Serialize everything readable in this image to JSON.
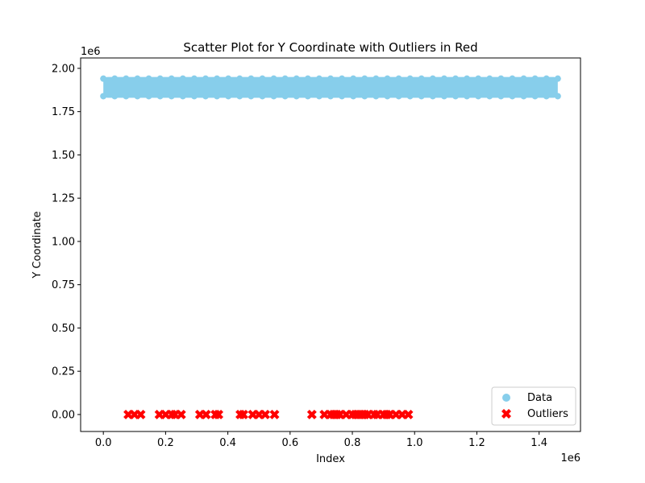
{
  "chart_data": {
    "type": "scatter",
    "title": "Scatter Plot for Y Coordinate with Outliers in Red",
    "xlabel": "Index",
    "ylabel": "Y Coordinate",
    "x_offset_text": "1e6",
    "y_offset_text": "1e6",
    "xlim": [
      -0.073,
      1.533
    ],
    "ylim": [
      -0.098,
      2.06
    ],
    "x_ticks": [
      0.0,
      0.2,
      0.4,
      0.6,
      0.8,
      1.0,
      1.2,
      1.4
    ],
    "x_tick_labels": [
      "0.0",
      "0.2",
      "0.4",
      "0.6",
      "0.8",
      "1.0",
      "1.2",
      "1.4"
    ],
    "y_ticks": [
      0.0,
      0.25,
      0.5,
      0.75,
      1.0,
      1.25,
      1.5,
      1.75,
      2.0
    ],
    "y_tick_labels": [
      "0.00",
      "0.25",
      "0.50",
      "0.75",
      "1.00",
      "1.25",
      "1.50",
      "1.75",
      "2.00"
    ],
    "grid": false,
    "legend_position": "lower right",
    "series": [
      {
        "name": "Data",
        "marker": "circle",
        "color": "#87CEEB",
        "x_range": [
          0.0,
          1.46
        ],
        "y_range": [
          1.83,
          1.95
        ],
        "note_dense": "dense band of points across full index range"
      },
      {
        "name": "Outliers",
        "marker": "x",
        "color": "#FF0000",
        "points": [
          [
            0.08,
            0.0
          ],
          [
            0.1,
            0.0
          ],
          [
            0.12,
            0.0
          ],
          [
            0.18,
            0.0
          ],
          [
            0.2,
            0.0
          ],
          [
            0.22,
            0.0
          ],
          [
            0.23,
            0.0
          ],
          [
            0.25,
            0.0
          ],
          [
            0.31,
            0.0
          ],
          [
            0.33,
            0.0
          ],
          [
            0.36,
            0.0
          ],
          [
            0.37,
            0.0
          ],
          [
            0.44,
            0.0
          ],
          [
            0.45,
            0.0
          ],
          [
            0.48,
            0.0
          ],
          [
            0.5,
            0.0
          ],
          [
            0.52,
            0.0
          ],
          [
            0.55,
            0.0
          ],
          [
            0.67,
            0.0
          ],
          [
            0.71,
            0.0
          ],
          [
            0.73,
            0.0
          ],
          [
            0.74,
            0.0
          ],
          [
            0.75,
            0.0
          ],
          [
            0.76,
            0.0
          ],
          [
            0.78,
            0.0
          ],
          [
            0.8,
            0.0
          ],
          [
            0.81,
            0.0
          ],
          [
            0.82,
            0.0
          ],
          [
            0.83,
            0.0
          ],
          [
            0.84,
            0.0
          ],
          [
            0.85,
            0.0
          ],
          [
            0.87,
            0.0
          ],
          [
            0.88,
            0.0
          ],
          [
            0.9,
            0.0
          ],
          [
            0.91,
            0.0
          ],
          [
            0.92,
            0.0
          ],
          [
            0.94,
            0.0
          ],
          [
            0.96,
            0.0
          ],
          [
            0.98,
            0.0
          ]
        ]
      }
    ]
  }
}
